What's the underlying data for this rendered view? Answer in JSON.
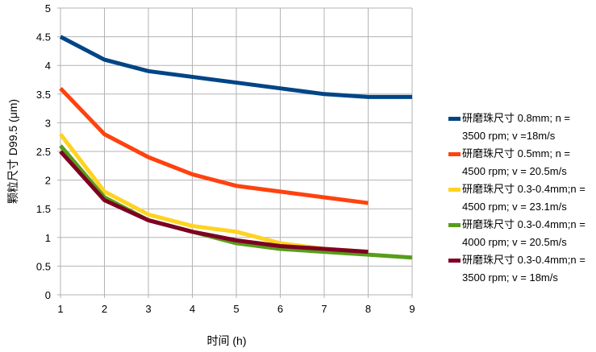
{
  "chart_data": {
    "type": "line",
    "title": "",
    "xlabel": "时间 (h)",
    "ylabel": "颗粒尺寸 D99.5 (μm)",
    "xlim": [
      1,
      9
    ],
    "ylim": [
      0,
      5
    ],
    "x_ticks": [
      "1",
      "2",
      "3",
      "4",
      "5",
      "6",
      "7",
      "8",
      "9"
    ],
    "y_ticks": [
      "0",
      "0.5",
      "1",
      "1.5",
      "2",
      "2.5",
      "3",
      "3.5",
      "4",
      "4.5",
      "5"
    ],
    "grid": true,
    "legend_position": "right",
    "series": [
      {
        "name_line1": "研磨珠尺寸 0.8mm; n =",
        "name_line2": "3500 rpm; v =18m/s",
        "color": "#004586",
        "x": [
          1,
          2,
          3,
          4,
          5,
          6,
          7,
          8,
          9
        ],
        "values": [
          4.5,
          4.1,
          3.9,
          3.8,
          3.7,
          3.6,
          3.5,
          3.45,
          3.45
        ]
      },
      {
        "name_line1": "研磨珠尺寸 0.5mm; n =",
        "name_line2": "4500 rpm; v = 20.5m/s",
        "color": "#ff420e",
        "x": [
          1,
          2,
          3,
          4,
          5,
          6,
          7,
          8
        ],
        "values": [
          3.6,
          2.8,
          2.4,
          2.1,
          1.9,
          1.8,
          1.7,
          1.6
        ]
      },
      {
        "name_line1": "研磨珠尺寸 0.3-0.4mm;n =",
        "name_line2": "4500 rpm; v = 23.1m/s",
        "color": "#ffd320",
        "x": [
          1,
          2,
          3,
          4,
          5,
          6,
          7,
          8
        ],
        "values": [
          2.8,
          1.8,
          1.4,
          1.2,
          1.1,
          0.9,
          0.8,
          0.75
        ]
      },
      {
        "name_line1": "研磨珠尺寸 0.3-0.4mm;n =",
        "name_line2": "4000 rpm; v = 20.5m/s",
        "color": "#579d1c",
        "x": [
          1,
          2,
          3,
          4,
          5,
          6,
          7,
          8,
          9
        ],
        "values": [
          2.6,
          1.7,
          1.3,
          1.1,
          0.9,
          0.8,
          0.75,
          0.7,
          0.65
        ]
      },
      {
        "name_line1": "研磨珠尺寸 0.3-0.4mm;n =",
        "name_line2": "3500 rpm; v = 18m/s",
        "color": "#7e0021",
        "x": [
          1,
          2,
          3,
          4,
          5,
          6,
          7,
          8
        ],
        "values": [
          2.5,
          1.65,
          1.3,
          1.1,
          0.95,
          0.85,
          0.8,
          0.75
        ]
      }
    ]
  }
}
